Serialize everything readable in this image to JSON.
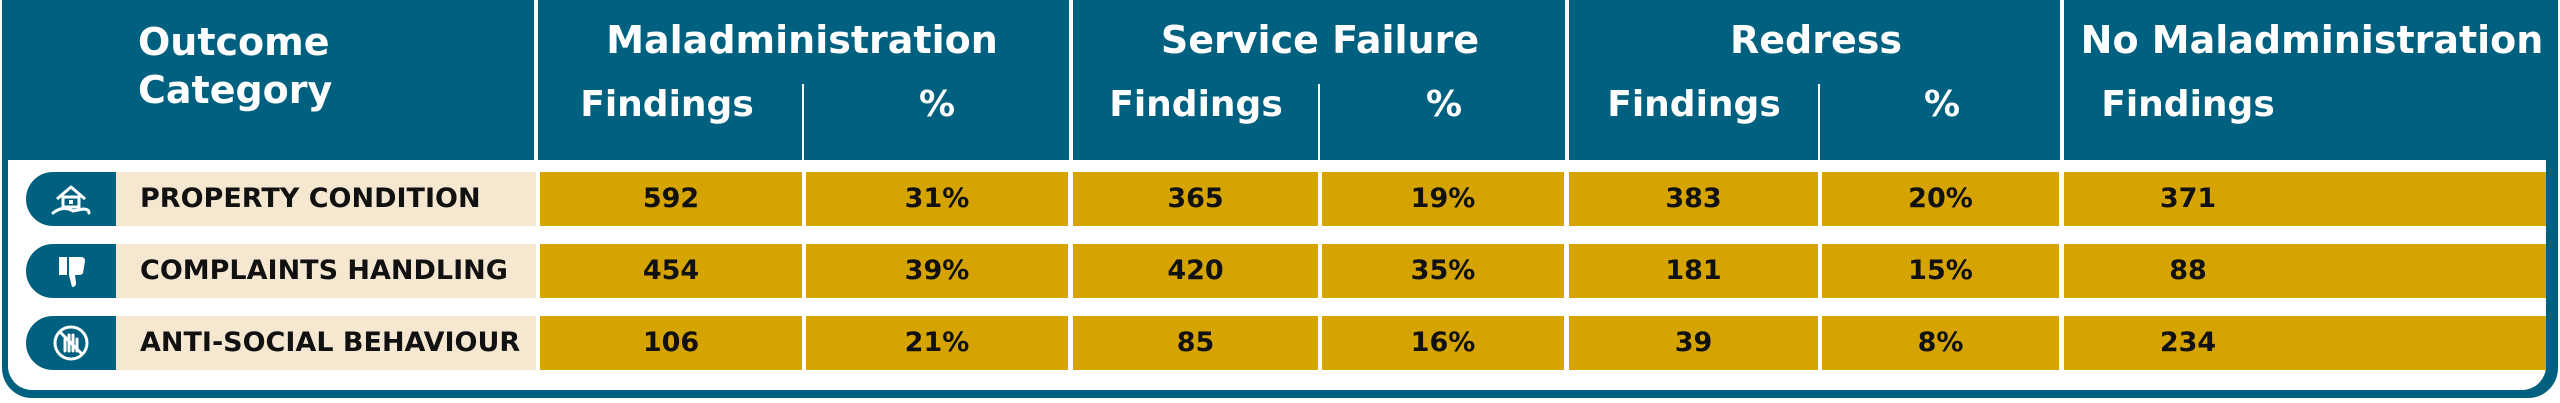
{
  "header": {
    "outcome_category": "Outcome\nCategory",
    "groups": [
      {
        "title": "Maladministration",
        "sub": [
          "Findings",
          "%"
        ]
      },
      {
        "title": "Service Failure",
        "sub": [
          "Findings",
          "%"
        ]
      },
      {
        "title": "Redress",
        "sub": [
          "Findings",
          "%"
        ]
      },
      {
        "title": "No Maladministration",
        "sub": [
          "Findings"
        ]
      }
    ]
  },
  "rows": [
    {
      "icon": "house-in-hand-icon",
      "label": "PROPERTY CONDITION",
      "values": [
        "592",
        "31%",
        "365",
        "19%",
        "383",
        "20%",
        "371"
      ]
    },
    {
      "icon": "thumbs-down-icon",
      "label": "COMPLAINTS HANDLING",
      "values": [
        "454",
        "39%",
        "420",
        "35%",
        "181",
        "15%",
        "88"
      ]
    },
    {
      "icon": "no-hand-icon",
      "label": "ANTI-SOCIAL BEHAVIOUR",
      "values": [
        "106",
        "21%",
        "85",
        "16%",
        "39",
        "8%",
        "234"
      ]
    }
  ],
  "colors": {
    "header_bg": "#00607f",
    "label_bg": "#f6e8d0",
    "cell_bg": "#d6a400",
    "header_text": "#ffffff"
  }
}
